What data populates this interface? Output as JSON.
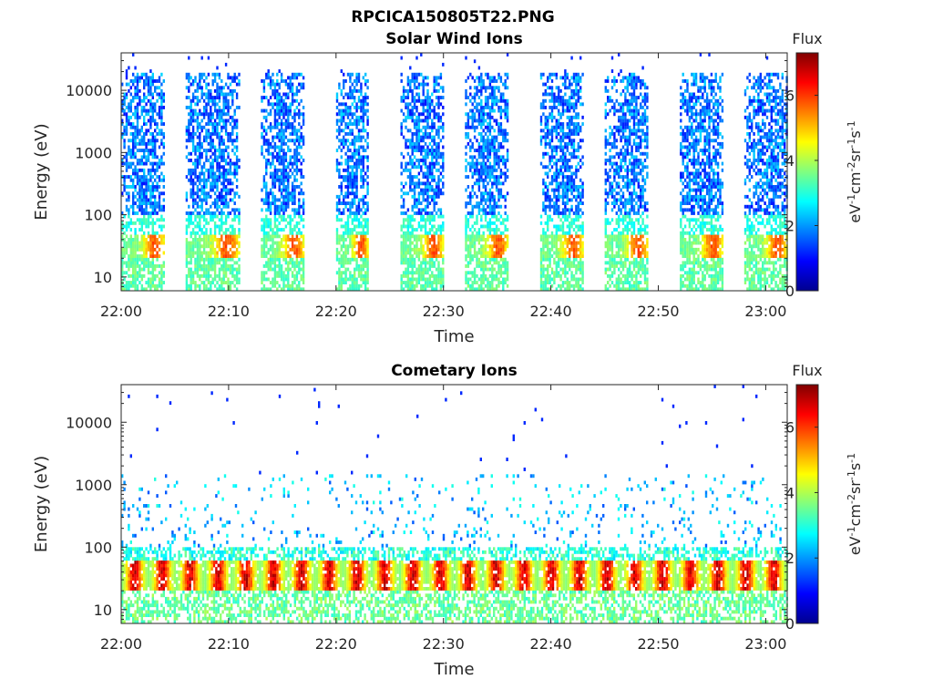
{
  "figure": {
    "title": "RPCICA150805T22.PNG"
  },
  "chart_data": [
    {
      "type": "heatmap",
      "title": "Solar Wind Ions",
      "xlabel": "Time",
      "ylabel": "Energy (eV)",
      "x_ticks": [
        "22:00",
        "22:10",
        "22:20",
        "22:30",
        "22:40",
        "22:50",
        "23:00"
      ],
      "x_range": [
        "22:00",
        "23:02"
      ],
      "y_scale": "log",
      "y_ticks": [
        "10",
        "100",
        "1000",
        "10000"
      ],
      "y_range": [
        6,
        40000
      ],
      "colorbar": {
        "label_top": "Flux",
        "label_side": "eV-1cm-2sr-1s-1",
        "range": [
          0,
          7.3
        ],
        "ticks": [
          "0",
          "2",
          "4",
          "6"
        ]
      },
      "bursts": [
        {
          "start": "22:00",
          "end": "22:04"
        },
        {
          "start": "22:06",
          "end": "22:11"
        },
        {
          "start": "22:13",
          "end": "22:17"
        },
        {
          "start": "22:20",
          "end": "22:23"
        },
        {
          "start": "22:26",
          "end": "22:30"
        },
        {
          "start": "22:32",
          "end": "22:36"
        },
        {
          "start": "22:39",
          "end": "22:43"
        },
        {
          "start": "22:45",
          "end": "22:49"
        },
        {
          "start": "22:52",
          "end": "22:56"
        },
        {
          "start": "22:58",
          "end": "23:02"
        }
      ],
      "features": [
        {
          "name": "high-energy population",
          "energy_range": [
            100,
            20000
          ],
          "flux_range": [
            1.0,
            2.5
          ]
        },
        {
          "name": "low-energy proton peak",
          "energy_range": [
            20,
            50
          ],
          "flux_peak": 5.5
        },
        {
          "name": "low-energy tail",
          "energy_range": [
            6,
            20
          ],
          "flux_range": [
            3.0,
            3.8
          ]
        }
      ]
    },
    {
      "type": "heatmap",
      "title": "Cometary Ions",
      "xlabel": "Time",
      "ylabel": "Energy (eV)",
      "x_ticks": [
        "22:00",
        "22:10",
        "22:20",
        "22:30",
        "22:40",
        "22:50",
        "23:00"
      ],
      "x_range": [
        "22:00",
        "23:02"
      ],
      "y_scale": "log",
      "y_ticks": [
        "10",
        "100",
        "1000",
        "10000"
      ],
      "y_range": [
        6,
        40000
      ],
      "colorbar": {
        "label_top": "Flux",
        "label_side": "eV-1cm-2sr-1s-1",
        "range": [
          0,
          7.3
        ],
        "ticks": [
          "0",
          "2",
          "4",
          "6"
        ]
      },
      "bursts": [
        {
          "start": "22:00",
          "end": "23:02"
        }
      ],
      "features": [
        {
          "name": "cometary ion band",
          "energy_range": [
            20,
            60
          ],
          "flux_range": [
            5.0,
            7.2
          ]
        },
        {
          "name": "scattered high-energy counts",
          "energy_range": [
            100,
            1500
          ],
          "flux_range": [
            1.5,
            3.0
          ]
        },
        {
          "name": "low-energy tail",
          "energy_range": [
            6,
            20
          ],
          "flux_range": [
            3.0,
            4.0
          ]
        }
      ]
    }
  ]
}
